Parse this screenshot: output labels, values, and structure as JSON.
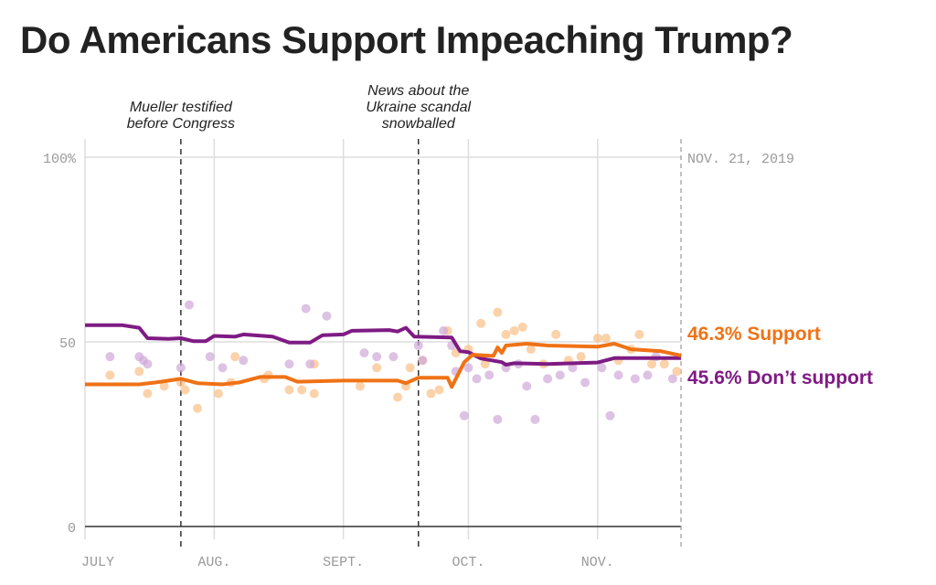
{
  "chart_data": {
    "type": "line",
    "title": "Do Americans Support Impeaching Trump?",
    "xlim": [
      "2019-07-01",
      "2019-11-21"
    ],
    "ylim": [
      0,
      100
    ],
    "grid": true,
    "y_ticks": [
      {
        "value": 0,
        "label": "0"
      },
      {
        "value": 50,
        "label": "50"
      },
      {
        "value": 100,
        "label": "100%"
      }
    ],
    "x_ticks": [
      {
        "date": "2019-07-01",
        "label": "JULY"
      },
      {
        "date": "2019-08-01",
        "label": "AUG."
      },
      {
        "date": "2019-09-01",
        "label": "SEPT."
      },
      {
        "date": "2019-10-01",
        "label": "OCT."
      },
      {
        "date": "2019-11-01",
        "label": "NOV."
      }
    ],
    "end_date_label": "NOV. 21, 2019",
    "annotations": [
      {
        "date": "2019-07-24",
        "lines": [
          "Mueller testified",
          "before Congress"
        ]
      },
      {
        "date": "2019-09-19",
        "lines": [
          "News about the",
          "Ukraine scandal",
          "snowballed"
        ]
      }
    ],
    "series": [
      {
        "name": "Support",
        "end_label": "46.3% Support",
        "color": "#ef7215",
        "dot_color": "#f9bf86",
        "trend": [
          [
            "2019-07-01",
            38.5
          ],
          [
            "2019-07-14",
            38.5
          ],
          [
            "2019-07-18",
            39
          ],
          [
            "2019-07-24",
            40
          ],
          [
            "2019-07-28",
            38.8
          ],
          [
            "2019-08-03",
            38.5
          ],
          [
            "2019-08-07",
            39
          ],
          [
            "2019-08-12",
            40.5
          ],
          [
            "2019-08-18",
            40.5
          ],
          [
            "2019-08-21",
            39.2
          ],
          [
            "2019-09-01",
            39.5
          ],
          [
            "2019-09-14",
            39.5
          ],
          [
            "2019-09-16",
            38.8
          ],
          [
            "2019-09-19",
            40.3
          ],
          [
            "2019-09-26",
            40.3
          ],
          [
            "2019-09-27",
            37.8
          ],
          [
            "2019-09-30",
            44.5
          ],
          [
            "2019-10-02",
            46.5
          ],
          [
            "2019-10-07",
            46.2
          ],
          [
            "2019-10-08",
            48.5
          ],
          [
            "2019-10-09",
            47
          ],
          [
            "2019-10-10",
            49
          ],
          [
            "2019-10-15",
            49.5
          ],
          [
            "2019-10-20",
            49
          ],
          [
            "2019-11-01",
            48.7
          ],
          [
            "2019-11-05",
            49.5
          ],
          [
            "2019-11-09",
            48
          ],
          [
            "2019-11-16",
            47.5
          ],
          [
            "2019-11-21",
            46.3
          ]
        ],
        "polls": [
          [
            "2019-07-07",
            41
          ],
          [
            "2019-07-14",
            42
          ],
          [
            "2019-07-16",
            36
          ],
          [
            "2019-07-20",
            38
          ],
          [
            "2019-07-24",
            39
          ],
          [
            "2019-07-25",
            37
          ],
          [
            "2019-07-28",
            32
          ],
          [
            "2019-08-02",
            36
          ],
          [
            "2019-08-05",
            39
          ],
          [
            "2019-08-06",
            46
          ],
          [
            "2019-08-13",
            40
          ],
          [
            "2019-08-14",
            41
          ],
          [
            "2019-08-19",
            37
          ],
          [
            "2019-08-22",
            37
          ],
          [
            "2019-08-25",
            44
          ],
          [
            "2019-08-25",
            36
          ],
          [
            "2019-09-05",
            38
          ],
          [
            "2019-09-09",
            43
          ],
          [
            "2019-09-14",
            35
          ],
          [
            "2019-09-16",
            38
          ],
          [
            "2019-09-17",
            43
          ],
          [
            "2019-09-20",
            45
          ],
          [
            "2019-09-22",
            36
          ],
          [
            "2019-09-24",
            37
          ],
          [
            "2019-09-26",
            53
          ],
          [
            "2019-09-28",
            47
          ],
          [
            "2019-10-01",
            48
          ],
          [
            "2019-10-04",
            55
          ],
          [
            "2019-10-05",
            44
          ],
          [
            "2019-10-08",
            58
          ],
          [
            "2019-10-10",
            52
          ],
          [
            "2019-10-12",
            53
          ],
          [
            "2019-10-14",
            54
          ],
          [
            "2019-10-16",
            48
          ],
          [
            "2019-10-19",
            44
          ],
          [
            "2019-10-22",
            52
          ],
          [
            "2019-10-25",
            45
          ],
          [
            "2019-10-28",
            46
          ],
          [
            "2019-11-01",
            51
          ],
          [
            "2019-11-03",
            51
          ],
          [
            "2019-11-06",
            45
          ],
          [
            "2019-11-09",
            48
          ],
          [
            "2019-11-11",
            52
          ],
          [
            "2019-11-14",
            44
          ],
          [
            "2019-11-17",
            44
          ],
          [
            "2019-11-20",
            42
          ]
        ]
      },
      {
        "name": "Don’t support",
        "end_label": "45.6% Don’t support",
        "color": "#7e1b83",
        "dot_color": "#cfa8d8",
        "trend": [
          [
            "2019-07-01",
            54.5
          ],
          [
            "2019-07-10",
            54.5
          ],
          [
            "2019-07-14",
            53.8
          ],
          [
            "2019-07-16",
            51
          ],
          [
            "2019-07-21",
            50.8
          ],
          [
            "2019-07-24",
            51
          ],
          [
            "2019-07-27",
            50.2
          ],
          [
            "2019-07-30",
            50.2
          ],
          [
            "2019-08-01",
            51.6
          ],
          [
            "2019-08-06",
            51.4
          ],
          [
            "2019-08-08",
            52
          ],
          [
            "2019-08-15",
            51.4
          ],
          [
            "2019-08-19",
            49.8
          ],
          [
            "2019-08-24",
            49.8
          ],
          [
            "2019-08-27",
            51.8
          ],
          [
            "2019-09-01",
            52
          ],
          [
            "2019-09-03",
            53
          ],
          [
            "2019-09-12",
            53.2
          ],
          [
            "2019-09-14",
            52.8
          ],
          [
            "2019-09-16",
            53.8
          ],
          [
            "2019-09-18",
            51.4
          ],
          [
            "2019-09-27",
            51.2
          ],
          [
            "2019-09-29",
            47.5
          ],
          [
            "2019-10-01",
            47.2
          ],
          [
            "2019-10-04",
            45.5
          ],
          [
            "2019-10-09",
            44.5
          ],
          [
            "2019-10-10",
            43.8
          ],
          [
            "2019-10-12",
            44.2
          ],
          [
            "2019-10-20",
            44
          ],
          [
            "2019-11-01",
            44.4
          ],
          [
            "2019-11-05",
            45.6
          ],
          [
            "2019-11-21",
            45.6
          ]
        ],
        "polls": [
          [
            "2019-07-07",
            46
          ],
          [
            "2019-07-14",
            46
          ],
          [
            "2019-07-15",
            45
          ],
          [
            "2019-07-16",
            44
          ],
          [
            "2019-07-24",
            43
          ],
          [
            "2019-07-26",
            60
          ],
          [
            "2019-07-31",
            46
          ],
          [
            "2019-08-03",
            43
          ],
          [
            "2019-08-08",
            45
          ],
          [
            "2019-08-19",
            44
          ],
          [
            "2019-08-23",
            59
          ],
          [
            "2019-08-24",
            44
          ],
          [
            "2019-08-28",
            57
          ],
          [
            "2019-09-06",
            47
          ],
          [
            "2019-09-09",
            46
          ],
          [
            "2019-09-13",
            46
          ],
          [
            "2019-09-19",
            49
          ],
          [
            "2019-09-20",
            45
          ],
          [
            "2019-09-25",
            53
          ],
          [
            "2019-09-27",
            49
          ],
          [
            "2019-09-28",
            42
          ],
          [
            "2019-09-30",
            30
          ],
          [
            "2019-10-01",
            43
          ],
          [
            "2019-10-03",
            40
          ],
          [
            "2019-10-06",
            41
          ],
          [
            "2019-10-08",
            29
          ],
          [
            "2019-10-10",
            43
          ],
          [
            "2019-10-13",
            44
          ],
          [
            "2019-10-15",
            38
          ],
          [
            "2019-10-17",
            29
          ],
          [
            "2019-10-20",
            40
          ],
          [
            "2019-10-23",
            41
          ],
          [
            "2019-10-26",
            43
          ],
          [
            "2019-10-29",
            39
          ],
          [
            "2019-11-02",
            43
          ],
          [
            "2019-11-04",
            30
          ],
          [
            "2019-11-06",
            41
          ],
          [
            "2019-11-10",
            40
          ],
          [
            "2019-11-13",
            41
          ],
          [
            "2019-11-15",
            46
          ],
          [
            "2019-11-19",
            40
          ]
        ]
      }
    ]
  }
}
